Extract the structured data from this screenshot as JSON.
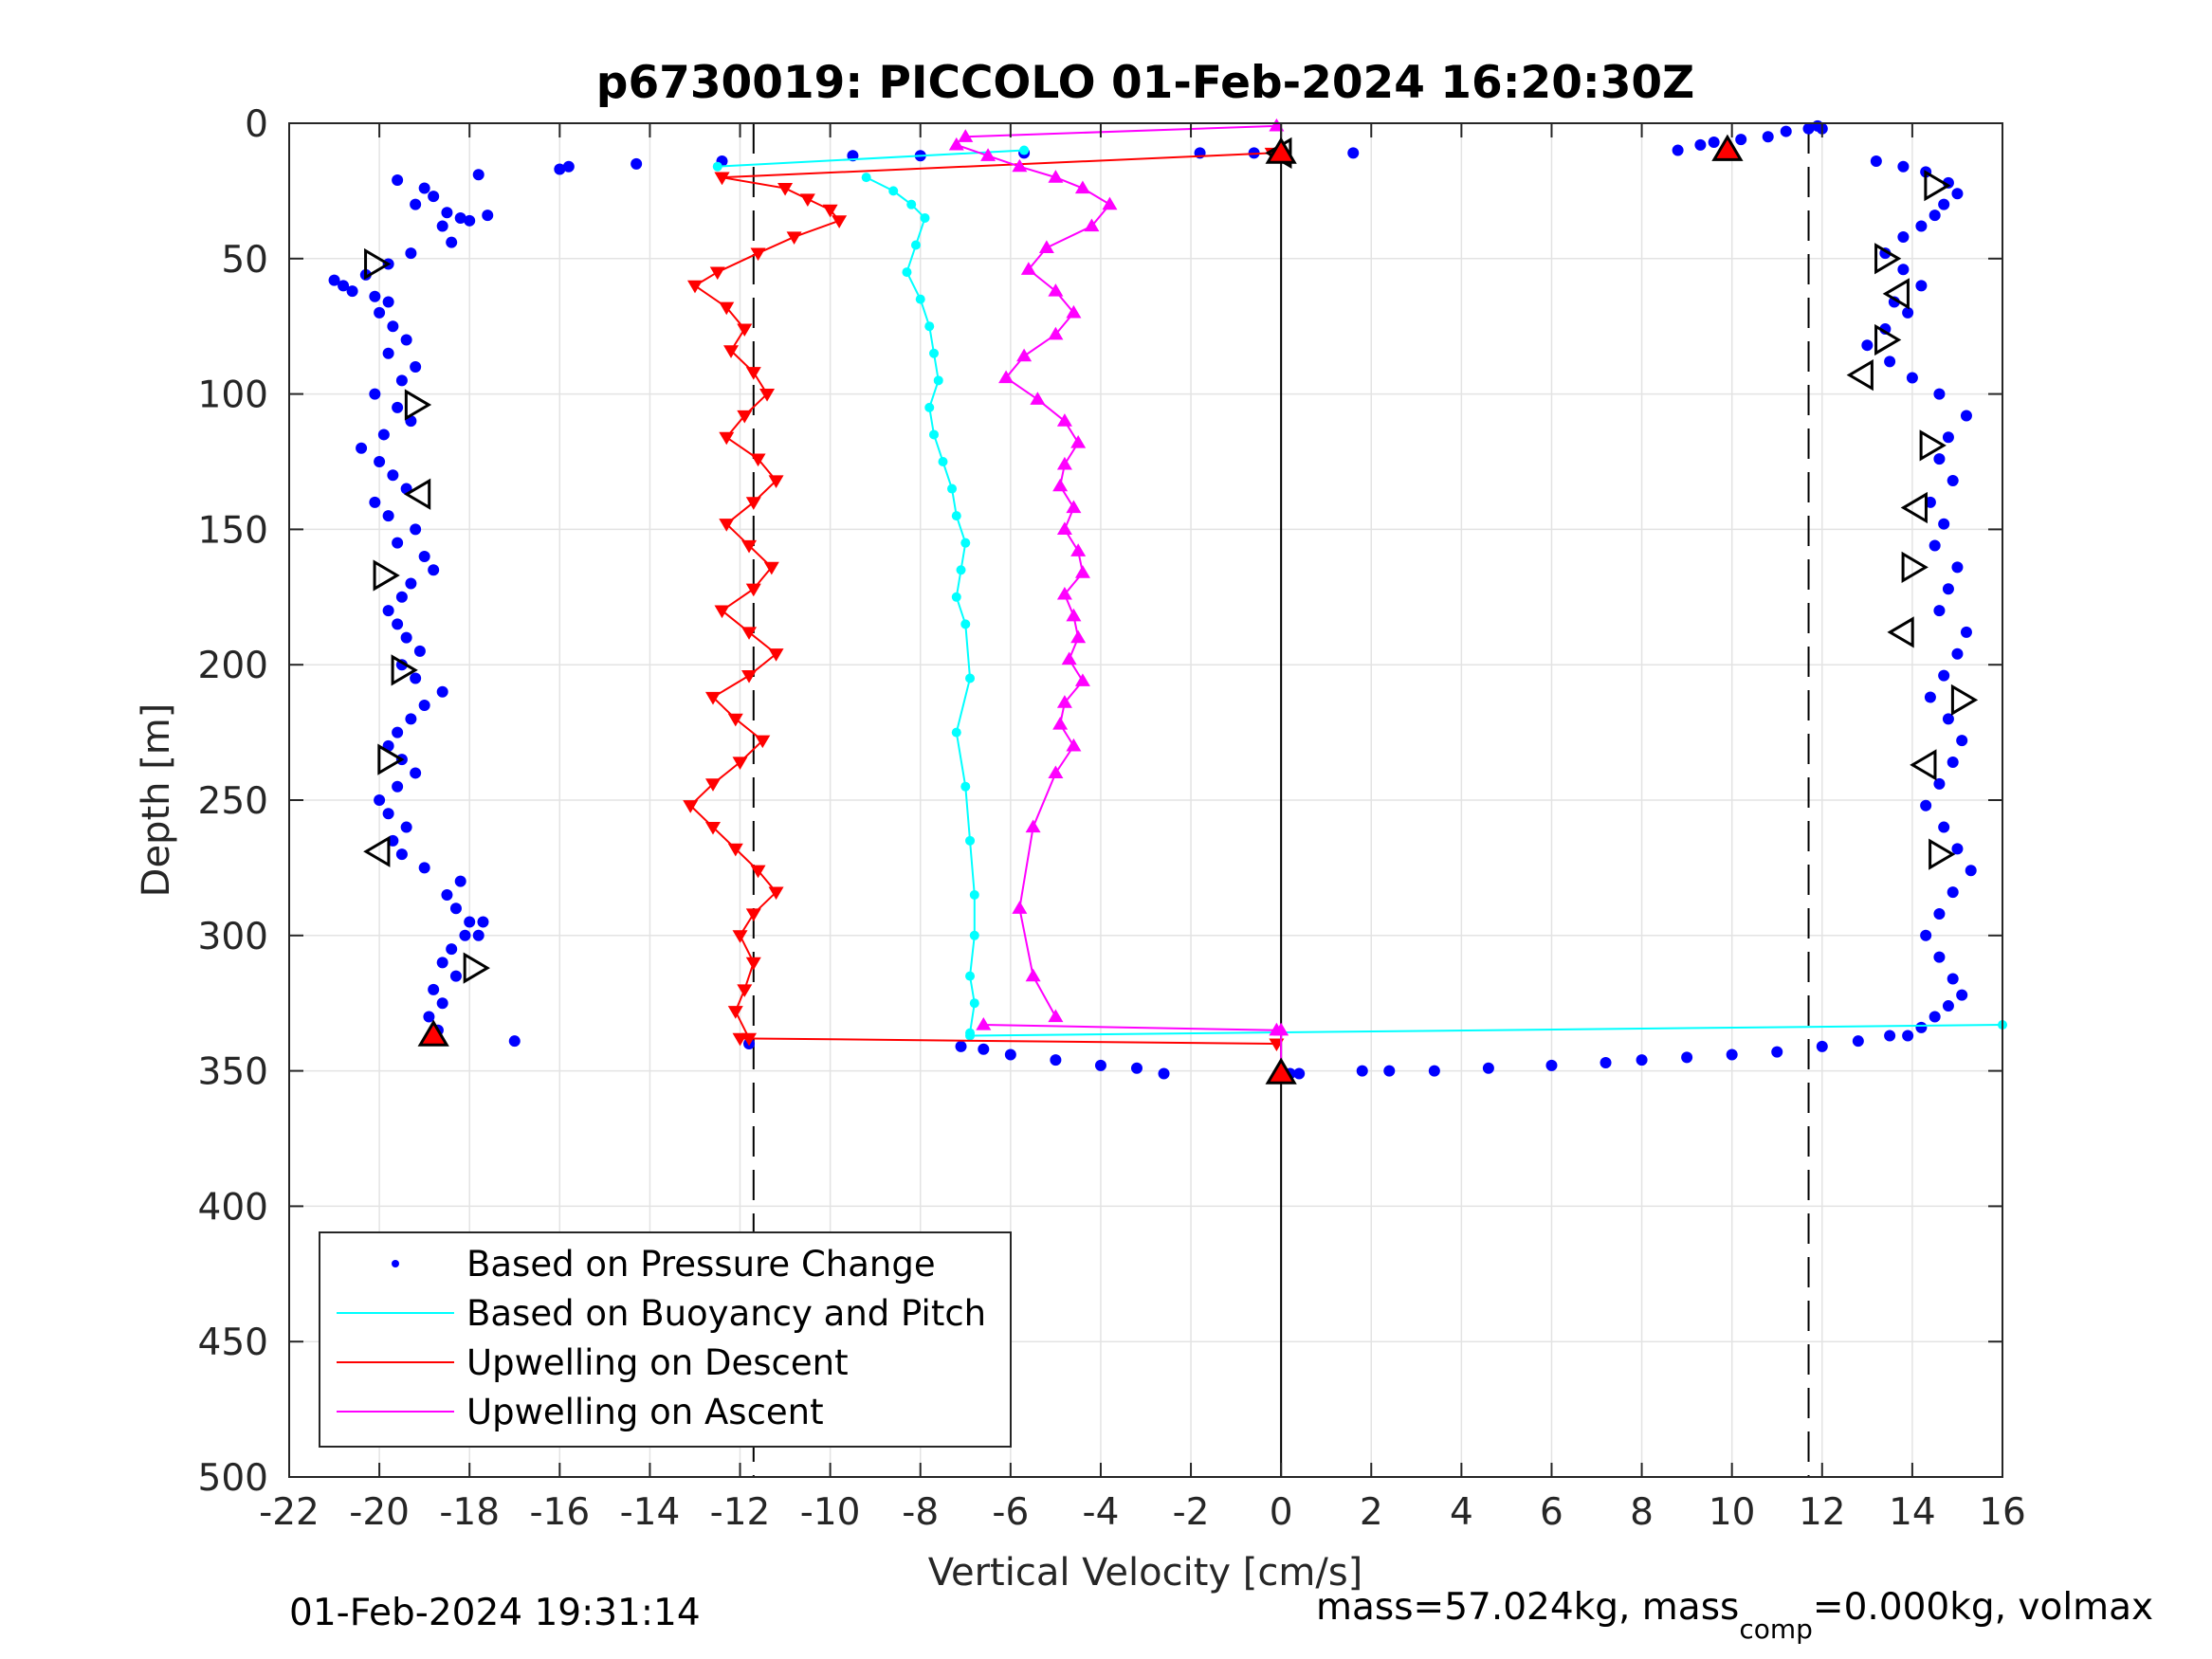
{
  "chart_data": {
    "type": "scatter",
    "title": "p6730019: PICCOLO 01-Feb-2024 16:20:30Z",
    "xlabel": "Vertical Velocity [cm/s]",
    "ylabel": "Depth [m]",
    "xlim": [
      -22,
      16
    ],
    "ylim": [
      0,
      500
    ],
    "y_reversed": true,
    "grid": true,
    "legend_position": "bottom-left",
    "xticks": [
      -22,
      -20,
      -18,
      -16,
      -14,
      -12,
      -10,
      -8,
      -6,
      -4,
      -2,
      0,
      2,
      4,
      6,
      8,
      10,
      12,
      14,
      16
    ],
    "yticks": [
      0,
      50,
      100,
      150,
      200,
      250,
      300,
      350,
      400,
      450,
      500
    ],
    "xtick_labels": [
      "-22",
      "-20",
      "-18",
      "-16",
      "-14",
      "-12",
      "-10",
      "-8",
      "-6",
      "-4",
      "-2",
      "0",
      "2",
      "4",
      "6",
      "8",
      "10",
      "12",
      "14",
      "16"
    ],
    "ytick_labels": [
      "0",
      "50",
      "100",
      "150",
      "200",
      "250",
      "300",
      "350",
      "400",
      "450",
      "500"
    ],
    "reference_lines": [
      {
        "x": -11.7,
        "style": "dashed"
      },
      {
        "x": 11.7,
        "style": "dashed"
      },
      {
        "x": 0,
        "style": "solid"
      }
    ],
    "series": [
      {
        "name": "Based on Pressure Change",
        "color": "#0000ff",
        "marker": "dot",
        "segments": [
          {
            "x": [
              -19.6,
              -19.0,
              -18.8,
              -19.2,
              -18.5,
              -18.2,
              -18.6,
              -18.0,
              -17.6,
              -18.4,
              -19.3,
              -19.8,
              -20.3,
              -20.8,
              -21.0,
              -20.6,
              -20.1,
              -19.8,
              -20.0,
              -19.7,
              -19.4,
              -19.8,
              -19.2,
              -19.5,
              -20.1,
              -19.6,
              -19.3,
              -19.9,
              -20.4,
              -20.0,
              -19.7,
              -19.4,
              -20.1,
              -19.8,
              -19.2,
              -19.6,
              -19.0,
              -18.8,
              -19.3,
              -19.5,
              -19.8,
              -19.6,
              -19.4,
              -19.1,
              -19.5,
              -19.2,
              -18.6,
              -19.0,
              -19.3,
              -19.6,
              -19.8,
              -19.5,
              -19.2,
              -19.6,
              -20.0,
              -19.8,
              -19.4,
              -19.7,
              -19.5,
              -19.0,
              -18.2,
              -18.5,
              -18.3,
              -18.0,
              -17.8,
              -18.4,
              -18.6,
              -18.1,
              -17.7,
              -18.3,
              -18.8,
              -18.6,
              -18.9,
              -18.7,
              -17.0
            ],
            "y": [
              21,
              24,
              27,
              30,
              33,
              35,
              38,
              36,
              34,
              44,
              48,
              52,
              56,
              60,
              58,
              62,
              64,
              66,
              70,
              75,
              80,
              85,
              90,
              95,
              100,
              105,
              110,
              115,
              120,
              125,
              130,
              135,
              140,
              145,
              150,
              155,
              160,
              165,
              170,
              175,
              180,
              185,
              190,
              195,
              200,
              205,
              210,
              215,
              220,
              225,
              230,
              235,
              240,
              245,
              250,
              255,
              260,
              265,
              270,
              275,
              280,
              285,
              290,
              295,
              300,
              305,
              310,
              300,
              295,
              315,
              320,
              325,
              330,
              335,
              339
            ]
          },
          {
            "x": [
              -17.8,
              -16.0,
              -15.8,
              -14.3,
              -12.4,
              -9.5,
              -8.0,
              -5.7,
              -1.8,
              -0.6,
              1.6
            ],
            "y": [
              19,
              17,
              16,
              15,
              14,
              12,
              12,
              11,
              11,
              11,
              11
            ]
          },
          {
            "x": [
              -11.8,
              -7.1,
              -6.6,
              -6.0,
              -5.0,
              -4.0,
              -3.2,
              -2.6
            ],
            "y": [
              340,
              341,
              342,
              344,
              346,
              348,
              349,
              351
            ]
          },
          {
            "x": [
              0.2,
              0.4,
              1.8,
              2.4,
              3.4,
              4.6,
              6.0,
              7.2,
              8.0,
              9.0,
              10.0,
              11.0,
              12.0,
              12.8,
              13.5
            ],
            "y": [
              351,
              351,
              350,
              350,
              350,
              349,
              348,
              347,
              346,
              345,
              344,
              343,
              341,
              339,
              337
            ]
          },
          {
            "x": [
              8.8,
              9.3,
              9.6,
              10.2,
              10.8,
              11.2,
              11.7,
              11.9,
              12.0
            ],
            "y": [
              10,
              8,
              7,
              6,
              5,
              3,
              2,
              1,
              2
            ]
          },
          {
            "x": [
              13.2,
              13.8,
              14.3,
              14.8,
              15.0,
              14.7,
              14.5,
              14.2,
              13.8,
              13.4,
              13.8,
              14.2,
              13.6,
              13.9,
              13.4,
              13.0,
              13.5,
              14.0,
              14.6,
              15.2,
              14.8,
              14.6,
              14.9,
              14.4,
              14.7,
              14.5,
              15.0,
              14.8,
              14.6,
              15.2,
              15.0,
              14.7,
              14.4,
              14.8,
              15.1,
              14.9,
              14.6,
              14.3,
              14.7,
              15.0,
              15.3,
              14.9,
              14.6,
              14.3,
              14.6,
              14.9,
              15.1,
              14.8,
              14.5,
              14.2,
              13.9
            ],
            "y": [
              14,
              16,
              18,
              22,
              26,
              30,
              34,
              38,
              42,
              48,
              54,
              60,
              66,
              70,
              76,
              82,
              88,
              94,
              100,
              108,
              116,
              124,
              132,
              140,
              148,
              156,
              164,
              172,
              180,
              188,
              196,
              204,
              212,
              220,
              228,
              236,
              244,
              252,
              260,
              268,
              276,
              284,
              292,
              300,
              308,
              316,
              322,
              326,
              330,
              334,
              337
            ]
          }
        ]
      },
      {
        "name": "Based on Buoyancy and Pitch",
        "color": "#00ffff",
        "marker": "line",
        "segments": [
          {
            "x": [
              -12.5,
              -5.7
            ],
            "y": [
              16,
              10
            ]
          },
          {
            "x": [
              -9.2,
              -8.6,
              -8.2,
              -7.9,
              -8.1,
              -8.3,
              -8.0,
              -7.8,
              -7.7,
              -7.6,
              -7.8,
              -7.7,
              -7.5,
              -7.3,
              -7.2,
              -7.0,
              -7.1,
              -7.2,
              -7.0,
              -6.9,
              -7.2,
              -7.0,
              -6.9,
              -6.8,
              -6.8,
              -6.9,
              -6.8,
              -6.9
            ],
            "y": [
              20,
              25,
              30,
              35,
              45,
              55,
              65,
              75,
              85,
              95,
              105,
              115,
              125,
              135,
              145,
              155,
              165,
              175,
              185,
              205,
              225,
              245,
              265,
              285,
              300,
              315,
              325,
              336
            ]
          },
          {
            "x": [
              -6.9,
              16
            ],
            "y": [
              337,
              333
            ]
          }
        ]
      },
      {
        "name": "Upwelling on Descent",
        "color": "#ff0000",
        "marker": "triangle-down",
        "segments": [
          {
            "x": [
              -12.4,
              -11.0,
              -10.5,
              -10.0,
              -9.8,
              -10.8,
              -11.6,
              -12.5,
              -13.0,
              -12.3,
              -11.9,
              -12.2,
              -11.7,
              -11.4,
              -11.9,
              -12.3,
              -11.6,
              -11.2,
              -11.7,
              -12.3,
              -11.8,
              -11.3,
              -11.7,
              -12.4,
              -11.8,
              -11.2,
              -11.8,
              -12.6,
              -12.1,
              -11.5,
              -12.0,
              -12.6,
              -13.1,
              -12.6,
              -12.1,
              -11.6,
              -11.2,
              -11.7,
              -12.0,
              -11.7,
              -11.9,
              -12.1,
              -11.8
            ],
            "y": [
              20,
              24,
              28,
              32,
              36,
              42,
              48,
              55,
              60,
              68,
              76,
              84,
              92,
              100,
              108,
              116,
              124,
              132,
              140,
              148,
              156,
              164,
              172,
              180,
              188,
              196,
              204,
              212,
              220,
              228,
              236,
              244,
              252,
              260,
              268,
              276,
              284,
              292,
              300,
              310,
              320,
              328,
              338
            ]
          },
          {
            "x": [
              -12.4,
              -0.2
            ],
            "y": [
              20,
              11
            ]
          },
          {
            "x": [
              -12.0,
              -0.1
            ],
            "y": [
              338,
              340
            ]
          }
        ]
      },
      {
        "name": "Upwelling on Ascent",
        "color": "#ff00ff",
        "marker": "triangle-up",
        "segments": [
          {
            "x": [
              -7.0,
              -0.1
            ],
            "y": [
              5,
              1
            ]
          },
          {
            "x": [
              -7.2,
              -6.5,
              -5.8,
              -5.0,
              -4.4,
              -3.8,
              -4.2,
              -5.2,
              -5.6,
              -5.0,
              -4.6,
              -5.0,
              -5.7,
              -6.1,
              -5.4,
              -4.8,
              -4.5,
              -4.8,
              -4.9,
              -4.6,
              -4.8,
              -4.5,
              -4.4,
              -4.8,
              -4.6,
              -4.5,
              -4.7,
              -4.4,
              -4.8,
              -4.9,
              -4.6,
              -5.0,
              -5.5,
              -5.8,
              -5.5,
              -5.0
            ],
            "y": [
              8,
              12,
              16,
              20,
              24,
              30,
              38,
              46,
              54,
              62,
              70,
              78,
              86,
              94,
              102,
              110,
              118,
              126,
              134,
              142,
              150,
              158,
              166,
              174,
              182,
              190,
              198,
              206,
              214,
              222,
              230,
              240,
              260,
              290,
              315,
              330
            ]
          },
          {
            "x": [
              -6.6,
              -0.1
            ],
            "y": [
              333,
              335
            ]
          },
          {
            "x": [
              0.0,
              0.0
            ],
            "y": [
              335,
              352
            ]
          }
        ]
      }
    ],
    "markers_open": [
      {
        "x": -20.1,
        "y": 52,
        "dir": "right"
      },
      {
        "x": -19.2,
        "y": 104,
        "dir": "right"
      },
      {
        "x": -19.1,
        "y": 137,
        "dir": "left"
      },
      {
        "x": -19.9,
        "y": 167,
        "dir": "right"
      },
      {
        "x": -19.5,
        "y": 202,
        "dir": "right"
      },
      {
        "x": -19.8,
        "y": 235,
        "dir": "right"
      },
      {
        "x": -20.0,
        "y": 269,
        "dir": "left"
      },
      {
        "x": -17.9,
        "y": 312,
        "dir": "right"
      },
      {
        "x": 0.0,
        "y": 11,
        "dir": "left"
      },
      {
        "x": 14.5,
        "y": 23,
        "dir": "right"
      },
      {
        "x": 13.4,
        "y": 50,
        "dir": "right"
      },
      {
        "x": 13.7,
        "y": 63,
        "dir": "left"
      },
      {
        "x": 13.4,
        "y": 80,
        "dir": "right"
      },
      {
        "x": 12.9,
        "y": 93,
        "dir": "left"
      },
      {
        "x": 14.4,
        "y": 119,
        "dir": "right"
      },
      {
        "x": 14.1,
        "y": 142,
        "dir": "left"
      },
      {
        "x": 14.0,
        "y": 164,
        "dir": "right"
      },
      {
        "x": 13.8,
        "y": 188,
        "dir": "left"
      },
      {
        "x": 15.1,
        "y": 213,
        "dir": "right"
      },
      {
        "x": 14.3,
        "y": 237,
        "dir": "left"
      },
      {
        "x": 14.6,
        "y": 270,
        "dir": "right"
      }
    ],
    "markers_filled": [
      {
        "x": -18.8,
        "y": 337
      },
      {
        "x": 9.9,
        "y": 10
      },
      {
        "x": 0.0,
        "y": 11
      },
      {
        "x": 0.0,
        "y": 351
      }
    ]
  },
  "footer": {
    "timestamp": "01-Feb-2024 19:31:14",
    "mass_text_a": "mass=57.024kg, mass",
    "mass_sub": "comp",
    "mass_text_b": "=0.000kg, volmax"
  }
}
